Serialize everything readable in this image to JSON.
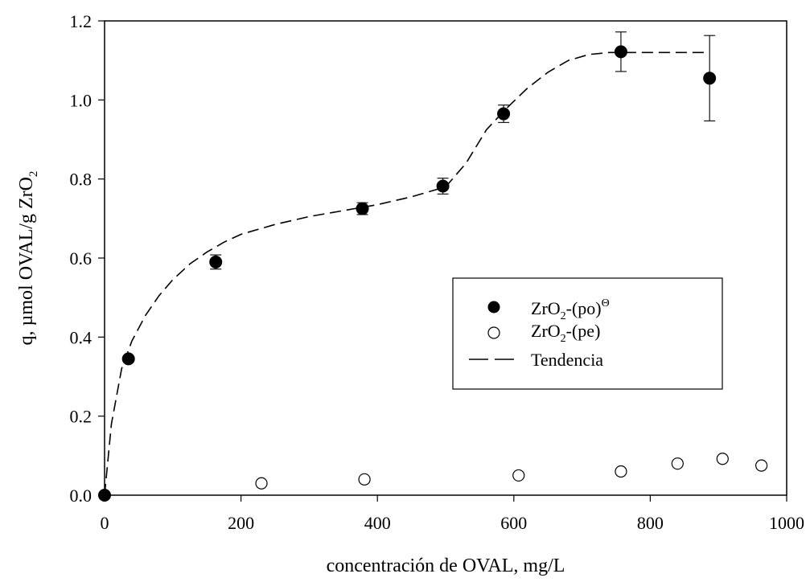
{
  "chart_data": {
    "type": "scatter",
    "title": "",
    "xlabel": "concentración de OVAL, mg/L",
    "ylabel_parts": {
      "main": "q, µmol OVAL/g ZrO",
      "sub": "2"
    },
    "xlim": [
      0,
      1000
    ],
    "ylim": [
      0,
      1.2
    ],
    "x_ticks": [
      "0",
      "200",
      "400",
      "600",
      "800",
      "1000"
    ],
    "y_ticks": [
      "0.0",
      "0.2",
      "0.4",
      "0.6",
      "0.8",
      "1.0",
      "1.2"
    ],
    "grid": false,
    "legend_placement": "center-right",
    "series": [
      {
        "name": "ZrO2-(po)Θ",
        "label_parts": {
          "base": "ZrO",
          "sub": "2",
          "rest": "-(po)",
          "sup": "Θ"
        },
        "marker": "filled-circle",
        "color": "#000000",
        "x": [
          0,
          35,
          163,
          378,
          496,
          585,
          757,
          887
        ],
        "y": [
          0.0,
          0.345,
          0.59,
          0.725,
          0.782,
          0.965,
          1.122,
          1.055
        ],
        "yerr": [
          0,
          0,
          0.018,
          0.015,
          0.02,
          0.022,
          0.05,
          0.108
        ]
      },
      {
        "name": "ZrO2-(pe)",
        "label_parts": {
          "base": "ZrO",
          "sub": "2",
          "rest": "-(pe)",
          "sup": ""
        },
        "marker": "open-circle",
        "color": "#000000",
        "x": [
          0,
          230,
          381,
          607,
          757,
          840,
          906,
          963
        ],
        "y": [
          0.0,
          0.03,
          0.04,
          0.05,
          0.06,
          0.08,
          0.092,
          0.075
        ]
      },
      {
        "name": "Tendencia",
        "label_parts": {
          "base": "Tendencia",
          "sub": "",
          "rest": "",
          "sup": ""
        },
        "marker": "dashed-line",
        "color": "#000000",
        "x": [
          0,
          10,
          25,
          40,
          60,
          80,
          100,
          125,
          150,
          175,
          200,
          250,
          300,
          350,
          400,
          450,
          500,
          530,
          560,
          590,
          620,
          650,
          680,
          710,
          740,
          760,
          800,
          850,
          887
        ],
        "y": [
          0.0,
          0.18,
          0.32,
          0.39,
          0.455,
          0.505,
          0.545,
          0.585,
          0.615,
          0.64,
          0.66,
          0.685,
          0.705,
          0.72,
          0.735,
          0.755,
          0.78,
          0.84,
          0.925,
          0.98,
          1.03,
          1.07,
          1.1,
          1.115,
          1.12,
          1.12,
          1.12,
          1.12,
          1.12
        ]
      }
    ]
  }
}
